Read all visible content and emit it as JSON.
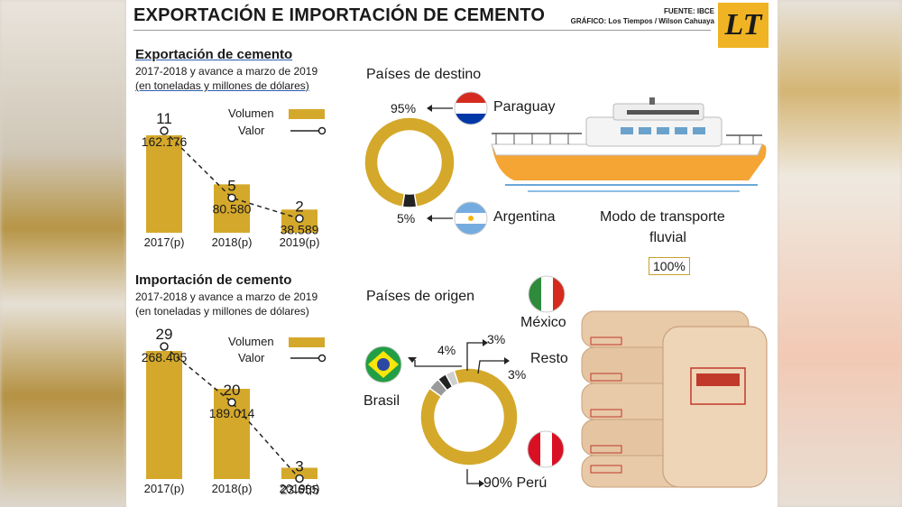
{
  "header": {
    "title": "EXPORTACIÓN E IMPORTACIÓN DE CEMENTO",
    "source": "FUENTE: IBCE",
    "credit": "GRÁFICO: Los Tiempos / Wilson Cahuaya",
    "logo": "LT"
  },
  "export": {
    "title": "Exportación de cemento",
    "sub1": "2017-2018 y avance a marzo de 2019",
    "sub2": "(en toneladas y millones de dólares)"
  },
  "import": {
    "title": "Importación de cemento",
    "sub1": "2017-2018 y avance a marzo de 2019",
    "sub2": "(en toneladas y millones de dólares)"
  },
  "legend": {
    "volume": "Volumen",
    "value": "Valor"
  },
  "transport": {
    "label1": "Modo de transporte",
    "label2": "fluvial",
    "pct": "100%"
  },
  "colors": {
    "gold": "#d4a82a",
    "dark": "#222222",
    "grey": "#9a9a9a",
    "lightgrey": "#cfcfcf"
  },
  "chart_data": [
    {
      "type": "bar",
      "categories": [
        "2017(p)",
        "2018(p)",
        "2019(p)"
      ],
      "series": [
        {
          "name": "Volumen",
          "values": [
            162176,
            80580,
            38589
          ],
          "labels": [
            "162.176",
            "80.580",
            "38.589"
          ]
        },
        {
          "name": "Valor",
          "values": [
            11,
            5,
            2
          ],
          "labels": [
            "11",
            "5",
            "2"
          ]
        }
      ]
    },
    {
      "type": "pie",
      "title": "Países de destino",
      "labels": [
        "Paraguay",
        "Argentina"
      ],
      "values": [
        95,
        5
      ],
      "pct_labels": [
        "95%",
        "5%"
      ]
    },
    {
      "type": "bar",
      "categories": [
        "2017(p)",
        "2018(p)",
        "2019(p)"
      ],
      "series": [
        {
          "name": "Volumen",
          "values": [
            268405,
            189014,
            23655
          ],
          "labels": [
            "268.405",
            "189.014",
            "23.655"
          ]
        },
        {
          "name": "Valor",
          "values": [
            29,
            20,
            3
          ],
          "labels": [
            "29",
            "20",
            "3"
          ]
        }
      ]
    },
    {
      "type": "pie",
      "title": "Países de origen",
      "labels": [
        "Perú",
        "Brasil",
        "México",
        "Resto"
      ],
      "values": [
        90,
        4,
        3,
        3
      ],
      "pct_labels": [
        "90%",
        "4%",
        "3%",
        "3%"
      ]
    }
  ]
}
